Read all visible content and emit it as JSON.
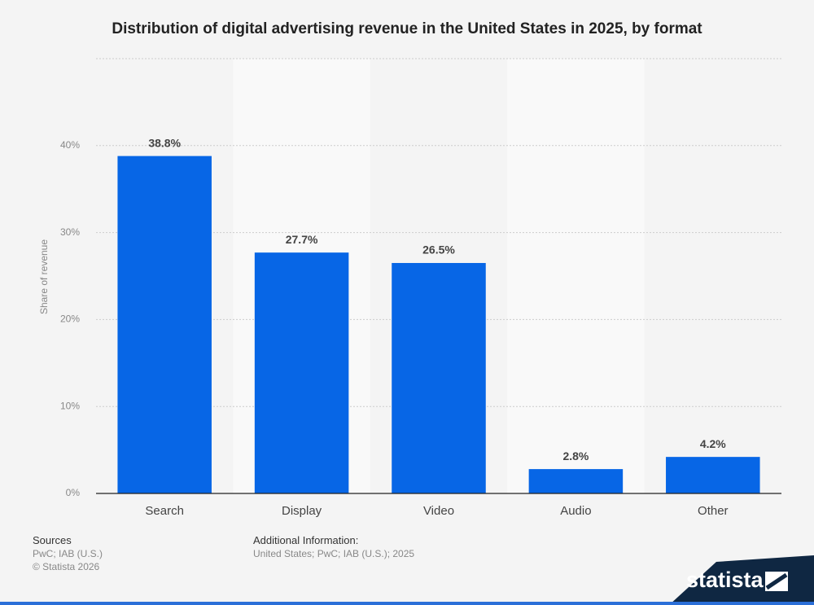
{
  "chart_data": {
    "type": "bar",
    "title": "Distribution of digital advertising revenue in the United States in 2025, by format",
    "y_label": "Share of revenue",
    "categories": [
      "Search",
      "Display",
      "Video",
      "Audio",
      "Other"
    ],
    "values": [
      38.8,
      27.7,
      26.5,
      2.8,
      4.2
    ],
    "value_labels": [
      "38.8%",
      "27.7%",
      "26.5%",
      "2.8%",
      "4.2%"
    ],
    "color": "#0766e6",
    "ylim": [
      0,
      50
    ],
    "yticks": [
      {
        "value": 0,
        "label": "0%"
      },
      {
        "value": 10,
        "label": "10%"
      },
      {
        "value": 20,
        "label": "20%"
      },
      {
        "value": 30,
        "label": "30%"
      },
      {
        "value": 40,
        "label": "40%"
      }
    ],
    "grid": true
  },
  "footer": {
    "sources_title": "Sources",
    "sources": "PwC; IAB (U.S.)",
    "copyright": "© Statista 2026",
    "info_title": "Additional Information:",
    "info": "United States; PwC; IAB (U.S.); 2025",
    "logo": "statista"
  }
}
